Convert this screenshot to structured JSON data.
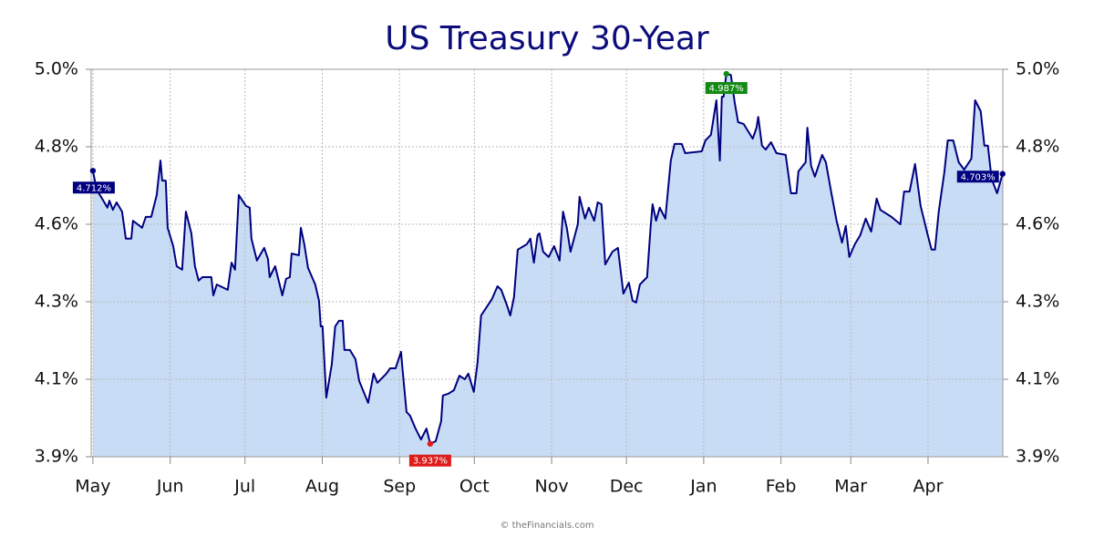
{
  "chart_data": {
    "type": "area",
    "title": "US Treasury 30-Year",
    "footer": "© theFinancials.com",
    "color": "#000080",
    "fill": "#c8ddf5",
    "grid": true,
    "xlim": [
      -0.7,
      365
    ],
    "xticks": [
      {
        "value": 0,
        "label": "May"
      },
      {
        "value": 31,
        "label": "Jun"
      },
      {
        "value": 61,
        "label": "Jul"
      },
      {
        "value": 92,
        "label": "Aug"
      },
      {
        "value": 123,
        "label": "Sep"
      },
      {
        "value": 153,
        "label": "Oct"
      },
      {
        "value": 184,
        "label": "Nov"
      },
      {
        "value": 214,
        "label": "Dec"
      },
      {
        "value": 245,
        "label": "Jan"
      },
      {
        "value": 276,
        "label": "Feb"
      },
      {
        "value": 304,
        "label": "Mar"
      },
      {
        "value": 335,
        "label": "Apr"
      }
    ],
    "ylim": [
      3.9,
      5.0
    ],
    "yticks": [
      {
        "value": 3.9,
        "label": "3.9%"
      },
      {
        "value": 4.12,
        "label": "4.1%"
      },
      {
        "value": 4.34,
        "label": "4.3%"
      },
      {
        "value": 4.56,
        "label": "4.6%"
      },
      {
        "value": 4.78,
        "label": "4.8%"
      },
      {
        "value": 5.0,
        "label": "5.0%"
      }
    ],
    "x": [
      0,
      1.5,
      3.7,
      5.8,
      6.6,
      8.0,
      9.5,
      11.7,
      13.2,
      15.4,
      16.1,
      19.7,
      21.2,
      23.4,
      25.6,
      27.1,
      27.8,
      29.2,
      30.0,
      32.2,
      33.6,
      35.8,
      37.3,
      39.5,
      40.9,
      42.4,
      43.9,
      47.5,
      48.3,
      49.7,
      54.1,
      55.6,
      57.0,
      58.5,
      61.4,
      62.9,
      63.6,
      65.8,
      68.7,
      70.2,
      70.9,
      73.1,
      76.0,
      77.5,
      79.0,
      79.7,
      82.6,
      83.4,
      84.8,
      86.3,
      89.2,
      90.7,
      91.4,
      92.1,
      93.6,
      95.8,
      97.2,
      98.7,
      100.2,
      100.9,
      103.1,
      105.3,
      106.8,
      110.4,
      112.6,
      114.1,
      117.7,
      119.2,
      121.4,
      123.6,
      124.3,
      125.8,
      127.2,
      129.4,
      131.6,
      133.8,
      135.3,
      137.5,
      139.7,
      140.4,
      142.6,
      144.8,
      147.0,
      149.2,
      150.6,
      152.8,
      154.3,
      155.7,
      160.1,
      162.3,
      163.8,
      166.0,
      167.4,
      168.9,
      170.4,
      174.0,
      175.5,
      176.9,
      178.4,
      179.1,
      180.6,
      182.8,
      185.0,
      187.2,
      188.6,
      190.1,
      191.6,
      194.5,
      195.2,
      197.4,
      198.9,
      201.1,
      202.5,
      204.0,
      205.5,
      208.4,
      210.6,
      212.8,
      215.0,
      216.5,
      217.9,
      219.4,
      222.3,
      223.7,
      224.5,
      225.9,
      227.4,
      229.6,
      231.8,
      233.3,
      236.2,
      237.6,
      244.2,
      245.7,
      247.9,
      250.1,
      251.5,
      252.3,
      253.0,
      254.1,
      255.9,
      257.4,
      258.8,
      261.0,
      264.7,
      266.2,
      266.9,
      268.4,
      269.9,
      272.0,
      274.2,
      277.9,
      280.0,
      282.2,
      283.0,
      285.9,
      286.6,
      288.1,
      289.6,
      292.5,
      294.0,
      296.1,
      298.3,
      300.5,
      302.0,
      303.4,
      305.6,
      307.8,
      310.0,
      312.2,
      314.4,
      315.9,
      320.3,
      323.9,
      325.4,
      327.6,
      329.8,
      332.0,
      334.9,
      336.4,
      337.8,
      339.3,
      341.5,
      342.9,
      345.1,
      347.3,
      349.5,
      352.4,
      353.9,
      356.1,
      357.6,
      359.0,
      360.5,
      362.7,
      364.9
    ],
    "values": [
      4.712,
      4.658,
      4.633,
      4.607,
      4.627,
      4.601,
      4.622,
      4.596,
      4.519,
      4.519,
      4.57,
      4.55,
      4.581,
      4.581,
      4.643,
      4.741,
      4.684,
      4.684,
      4.55,
      4.498,
      4.441,
      4.431,
      4.596,
      4.534,
      4.441,
      4.4,
      4.41,
      4.41,
      4.358,
      4.389,
      4.374,
      4.451,
      4.431,
      4.643,
      4.612,
      4.607,
      4.519,
      4.457,
      4.493,
      4.462,
      4.41,
      4.441,
      4.358,
      4.405,
      4.41,
      4.477,
      4.472,
      4.55,
      4.503,
      4.436,
      4.389,
      4.343,
      4.27,
      4.27,
      4.068,
      4.162,
      4.27,
      4.286,
      4.286,
      4.203,
      4.203,
      4.177,
      4.115,
      4.053,
      4.136,
      4.11,
      4.136,
      4.151,
      4.151,
      4.198,
      4.141,
      4.027,
      4.017,
      3.98,
      3.949,
      3.98,
      3.937,
      3.944,
      4.001,
      4.074,
      4.079,
      4.089,
      4.13,
      4.12,
      4.136,
      4.084,
      4.167,
      4.301,
      4.348,
      4.384,
      4.374,
      4.332,
      4.301,
      4.353,
      4.488,
      4.503,
      4.519,
      4.451,
      4.529,
      4.534,
      4.482,
      4.467,
      4.498,
      4.457,
      4.596,
      4.55,
      4.482,
      4.56,
      4.638,
      4.576,
      4.607,
      4.57,
      4.622,
      4.617,
      4.446,
      4.482,
      4.493,
      4.363,
      4.394,
      4.343,
      4.338,
      4.389,
      4.41,
      4.55,
      4.617,
      4.57,
      4.607,
      4.576,
      4.741,
      4.788,
      4.788,
      4.762,
      4.767,
      4.798,
      4.814,
      4.912,
      4.741,
      4.922,
      4.922,
      4.987,
      4.984,
      4.907,
      4.85,
      4.845,
      4.803,
      4.834,
      4.865,
      4.783,
      4.772,
      4.793,
      4.762,
      4.757,
      4.648,
      4.648,
      4.71,
      4.736,
      4.834,
      4.726,
      4.695,
      4.757,
      4.736,
      4.653,
      4.57,
      4.508,
      4.555,
      4.467,
      4.503,
      4.529,
      4.576,
      4.539,
      4.633,
      4.601,
      4.581,
      4.56,
      4.653,
      4.653,
      4.731,
      4.612,
      4.529,
      4.488,
      4.488,
      4.596,
      4.705,
      4.798,
      4.798,
      4.736,
      4.715,
      4.746,
      4.912,
      4.881,
      4.783,
      4.783,
      4.689,
      4.648,
      4.703
    ],
    "annotations": [
      {
        "x": 0,
        "y": 4.712,
        "label": "4.712%",
        "color": "#000080"
      },
      {
        "x": 135.3,
        "y": 3.937,
        "label": "3.937%",
        "color": "#dd1c1c"
      },
      {
        "x": 254.1,
        "y": 4.987,
        "label": "4.987%",
        "color": "#138a13"
      },
      {
        "x": 364.9,
        "y": 4.703,
        "label": "4.703%",
        "color": "#000080"
      }
    ]
  }
}
